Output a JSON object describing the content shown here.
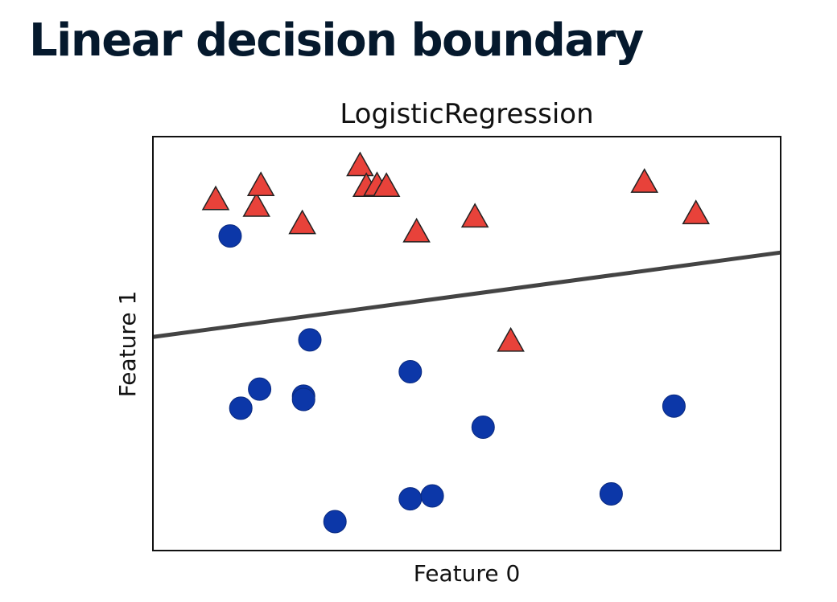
{
  "slide": {
    "title": "Linear decision boundary"
  },
  "chart_data": {
    "type": "scatter",
    "title": "LogisticRegression",
    "xlabel": "Feature 0",
    "ylabel": "Feature 1",
    "xlim": [
      0,
      10
    ],
    "ylim": [
      0,
      10
    ],
    "grid": false,
    "xticks": [],
    "yticks": [],
    "boundary": {
      "x": [
        0,
        10
      ],
      "y": [
        5.16,
        7.2
      ]
    },
    "series": [
      {
        "marker": "circle",
        "color": "#0c37a8",
        "points": [
          [
            1.23,
            7.6
          ],
          [
            2.5,
            5.09
          ],
          [
            1.7,
            3.9
          ],
          [
            2.4,
            3.73
          ],
          [
            2.4,
            3.65
          ],
          [
            1.4,
            3.44
          ],
          [
            4.1,
            4.32
          ],
          [
            5.26,
            2.98
          ],
          [
            4.1,
            1.25
          ],
          [
            4.45,
            1.32
          ],
          [
            2.9,
            0.7
          ],
          [
            7.3,
            1.37
          ],
          [
            8.3,
            3.49
          ]
        ],
        "values": [
          [
            1.23,
            7.6
          ],
          [
            2.5,
            5.09
          ],
          [
            1.7,
            3.9
          ],
          [
            2.4,
            3.73
          ],
          [
            2.4,
            3.65
          ],
          [
            1.4,
            3.44
          ],
          [
            4.1,
            4.32
          ],
          [
            5.26,
            2.98
          ],
          [
            4.1,
            1.25
          ],
          [
            4.45,
            1.32
          ],
          [
            2.9,
            0.7
          ],
          [
            7.3,
            1.37
          ],
          [
            8.3,
            3.49
          ]
        ]
      },
      {
        "marker": "triangle",
        "color": "#e8423a",
        "points": [
          [
            1.0,
            8.48
          ],
          [
            1.65,
            8.32
          ],
          [
            1.72,
            8.82
          ],
          [
            2.38,
            7.9
          ],
          [
            3.3,
            9.3
          ],
          [
            3.4,
            8.8
          ],
          [
            3.57,
            8.82
          ],
          [
            3.72,
            8.8
          ],
          [
            4.2,
            7.7
          ],
          [
            5.13,
            8.06
          ],
          [
            7.83,
            8.9
          ],
          [
            8.65,
            8.14
          ],
          [
            5.7,
            5.06
          ]
        ],
        "values": [
          [
            1.0,
            8.48
          ],
          [
            1.65,
            8.32
          ],
          [
            1.72,
            8.82
          ],
          [
            2.38,
            7.9
          ],
          [
            3.3,
            9.3
          ],
          [
            3.4,
            8.8
          ],
          [
            3.57,
            8.82
          ],
          [
            3.72,
            8.8
          ],
          [
            4.2,
            7.7
          ],
          [
            5.13,
            8.06
          ],
          [
            7.83,
            8.9
          ],
          [
            8.65,
            8.14
          ],
          [
            5.7,
            5.06
          ]
        ]
      }
    ]
  }
}
